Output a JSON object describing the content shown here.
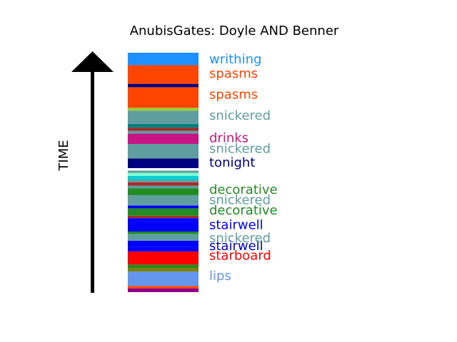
{
  "chart_data": {
    "type": "stacked-band",
    "title": "AnubisGates: Doyle AND Benner",
    "ylabel": "TIME",
    "time_range": [
      0,
      100
    ],
    "bands": [
      {
        "start": 0.0,
        "end": 1.5,
        "color": "#8B008B"
      },
      {
        "start": 1.5,
        "end": 2.6,
        "color": "#FF4500"
      },
      {
        "start": 2.6,
        "end": 8.6,
        "color": "#6495ED"
      },
      {
        "start": 8.6,
        "end": 10.0,
        "color": "#808000"
      },
      {
        "start": 10.0,
        "end": 11.5,
        "color": "#228B22"
      },
      {
        "start": 11.5,
        "end": 17.0,
        "color": "#FF0000"
      },
      {
        "start": 17.0,
        "end": 19.0,
        "color": "#0000FF"
      },
      {
        "start": 19.0,
        "end": 21.5,
        "color": "#0000FF"
      },
      {
        "start": 21.5,
        "end": 24.3,
        "color": "#5F9EA0"
      },
      {
        "start": 24.3,
        "end": 25.3,
        "color": "#228B22"
      },
      {
        "start": 25.3,
        "end": 30.9,
        "color": "#0000FF"
      },
      {
        "start": 30.9,
        "end": 31.9,
        "color": "#A52A2A"
      },
      {
        "start": 31.9,
        "end": 35.0,
        "color": "#228B22"
      },
      {
        "start": 35.0,
        "end": 36.2,
        "color": "#0000FF"
      },
      {
        "start": 36.2,
        "end": 40.5,
        "color": "#5F9EA0"
      },
      {
        "start": 40.5,
        "end": 43.3,
        "color": "#228B22"
      },
      {
        "start": 43.3,
        "end": 44.5,
        "color": "#5F9EA0"
      },
      {
        "start": 44.5,
        "end": 45.9,
        "color": "#A52A2A"
      },
      {
        "start": 45.9,
        "end": 47.0,
        "color": "#5F9EA0"
      },
      {
        "start": 47.0,
        "end": 48.6,
        "color": "#00CED1"
      },
      {
        "start": 48.6,
        "end": 49.8,
        "color": "#7FFFD4"
      },
      {
        "start": 49.8,
        "end": 50.8,
        "color": "#5F9EA0"
      },
      {
        "start": 50.8,
        "end": 51.8,
        "color": "#FFFFFF"
      },
      {
        "start": 51.8,
        "end": 55.8,
        "color": "#000080"
      },
      {
        "start": 55.8,
        "end": 61.9,
        "color": "#5F9EA0"
      },
      {
        "start": 61.9,
        "end": 66.2,
        "color": "#C71585"
      },
      {
        "start": 66.2,
        "end": 67.4,
        "color": "#5F9EA0"
      },
      {
        "start": 67.4,
        "end": 68.7,
        "color": "#A52A2A"
      },
      {
        "start": 68.7,
        "end": 70.3,
        "color": "#008080"
      },
      {
        "start": 70.3,
        "end": 75.8,
        "color": "#5F9EA0"
      },
      {
        "start": 75.8,
        "end": 77.0,
        "color": "#9ACD32"
      },
      {
        "start": 77.0,
        "end": 85.6,
        "color": "#FF4500"
      },
      {
        "start": 85.6,
        "end": 87.0,
        "color": "#000080"
      },
      {
        "start": 87.0,
        "end": 94.8,
        "color": "#FF4500"
      },
      {
        "start": 94.8,
        "end": 100.0,
        "color": "#1E90FF"
      }
    ],
    "labels": [
      {
        "text": "lips",
        "time": 6.5,
        "color": "#6495ED"
      },
      {
        "text": "starboard",
        "time": 15.0,
        "color": "#FF0000"
      },
      {
        "text": "stairwell",
        "time": 19.0,
        "color": "#0000CD"
      },
      {
        "text": "snickered",
        "time": 22.3,
        "color": "#5F9EA0"
      },
      {
        "text": "stairwell",
        "time": 27.9,
        "color": "#0000FF"
      },
      {
        "text": "decorative",
        "time": 34.0,
        "color": "#228B22"
      },
      {
        "text": "snickered",
        "time": 38.3,
        "color": "#5F9EA0"
      },
      {
        "text": "decorative",
        "time": 42.5,
        "color": "#228B22"
      },
      {
        "text": "tonight",
        "time": 53.8,
        "color": "#000080"
      },
      {
        "text": "snickered",
        "time": 59.7,
        "color": "#5F9EA0"
      },
      {
        "text": "drinks",
        "time": 64.1,
        "color": "#C71585"
      },
      {
        "text": "snickered",
        "time": 73.5,
        "color": "#5F9EA0"
      },
      {
        "text": "spasms",
        "time": 82.3,
        "color": "#FF4500"
      },
      {
        "text": "spasms",
        "time": 91.0,
        "color": "#FF4500"
      },
      {
        "text": "writhing",
        "time": 97.0,
        "color": "#1E90FF"
      }
    ]
  }
}
